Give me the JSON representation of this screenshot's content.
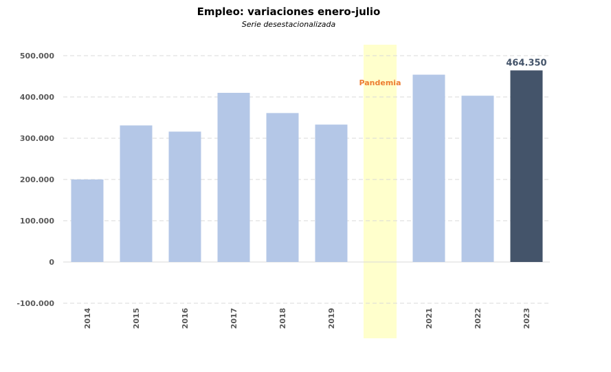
{
  "chart_data": {
    "type": "bar",
    "title": "Empleo: variaciones enero-julio",
    "subtitle": "Serie desestacionalizada",
    "categories": [
      "2014",
      "2015",
      "2016",
      "2017",
      "2018",
      "2019",
      "",
      "2021",
      "2022",
      "2023"
    ],
    "values": [
      200000,
      331000,
      316000,
      410000,
      361000,
      333000,
      null,
      454000,
      403000,
      464350
    ],
    "highlight": {
      "category": "2023",
      "label": "464.350",
      "color": "#44546a"
    },
    "bar_color": "#b4c7e7",
    "band": {
      "category_index": 6,
      "label": "Pandemia",
      "fill": "#ffffcc",
      "label_color": "#ed7d31"
    },
    "ylim": [
      -100000,
      500000
    ],
    "yticks": [
      500000,
      400000,
      300000,
      200000,
      100000,
      0,
      -100000
    ],
    "ytick_labels": [
      "500.000",
      "400.000",
      "300.000",
      "200.000",
      "100.000",
      "0",
      "-100.000"
    ],
    "grid": true,
    "legend": "none"
  }
}
